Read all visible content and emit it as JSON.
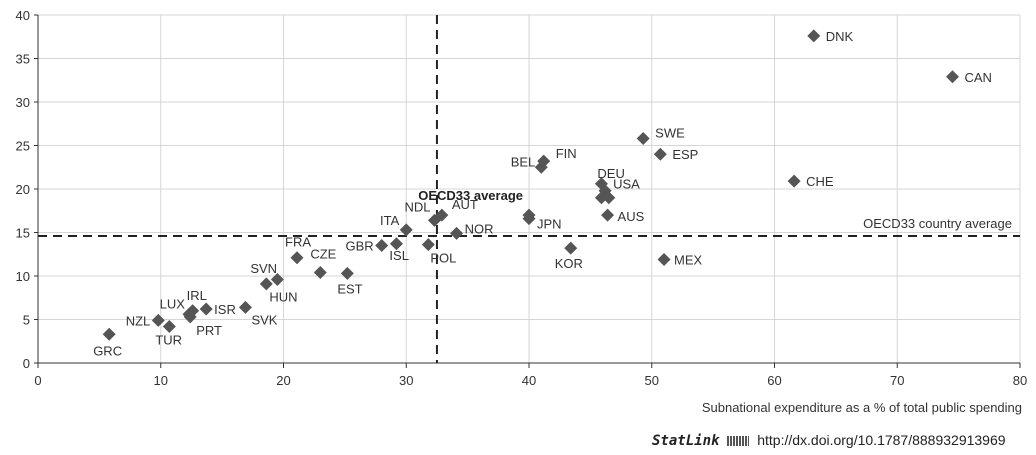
{
  "chart_data": {
    "type": "scatter",
    "xlabel": "Subnational expenditure as a % of total public spending",
    "ylabel": "",
    "xlim": [
      0,
      80
    ],
    "ylim": [
      0,
      40
    ],
    "x_ticks": [
      0,
      10,
      20,
      30,
      40,
      50,
      60,
      70,
      80
    ],
    "y_ticks": [
      0,
      5,
      10,
      15,
      20,
      25,
      30,
      35,
      40
    ],
    "grid": true,
    "marker": "diamond",
    "marker_color": "#555555",
    "reference_lines": {
      "horizontal": {
        "y": 14.6,
        "label": "OECD33 country average"
      },
      "vertical": {
        "x": 32.5
      }
    },
    "average_point": {
      "x": 40,
      "y": 17,
      "label": "OECD33 average"
    },
    "points": [
      {
        "label": "DNK",
        "x": 63.2,
        "y": 37.6
      },
      {
        "label": "CAN",
        "x": 74.5,
        "y": 32.9
      },
      {
        "label": "SWE",
        "x": 49.3,
        "y": 25.8
      },
      {
        "label": "ESP",
        "x": 50.7,
        "y": 24.0
      },
      {
        "label": "FIN",
        "x": 41.2,
        "y": 23.2
      },
      {
        "label": "BEL",
        "x": 41.0,
        "y": 22.5
      },
      {
        "label": "CHE",
        "x": 61.6,
        "y": 20.9
      },
      {
        "label": "DEU",
        "x": 45.9,
        "y": 20.6
      },
      {
        "label": "USA",
        "x": 46.2,
        "y": 19.8
      },
      {
        "label": "",
        "x": 45.9,
        "y": 19.0
      },
      {
        "label": "",
        "x": 46.5,
        "y": 19.0
      },
      {
        "label": "AUS",
        "x": 46.4,
        "y": 17.0
      },
      {
        "label": "JPN",
        "x": 40.0,
        "y": 16.6
      },
      {
        "label": "AUT",
        "x": 32.9,
        "y": 17.0
      },
      {
        "label": "NDL",
        "x": 32.3,
        "y": 16.4
      },
      {
        "label": "NOR",
        "x": 34.1,
        "y": 14.9
      },
      {
        "label": "ITA",
        "x": 30.0,
        "y": 15.3
      },
      {
        "label": "POL",
        "x": 31.8,
        "y": 13.6
      },
      {
        "label": "ISL",
        "x": 29.2,
        "y": 13.7
      },
      {
        "label": "GBR",
        "x": 28.0,
        "y": 13.5
      },
      {
        "label": "KOR",
        "x": 43.4,
        "y": 13.2
      },
      {
        "label": "MEX",
        "x": 51.0,
        "y": 11.9
      },
      {
        "label": "FRA",
        "x": 21.1,
        "y": 12.1
      },
      {
        "label": "CZE",
        "x": 23.0,
        "y": 10.4
      },
      {
        "label": "EST",
        "x": 25.2,
        "y": 10.3
      },
      {
        "label": "SVN",
        "x": 18.6,
        "y": 9.1
      },
      {
        "label": "HUN",
        "x": 19.5,
        "y": 9.6
      },
      {
        "label": "SVK",
        "x": 16.9,
        "y": 6.4
      },
      {
        "label": "ISR",
        "x": 13.7,
        "y": 6.2
      },
      {
        "label": "IRL",
        "x": 12.6,
        "y": 6.0
      },
      {
        "label": "PRT",
        "x": 12.4,
        "y": 5.3
      },
      {
        "label": "LUX",
        "x": 12.3,
        "y": 5.6
      },
      {
        "label": "NZL",
        "x": 9.8,
        "y": 4.9
      },
      {
        "label": "TUR",
        "x": 10.7,
        "y": 4.2
      },
      {
        "label": "GRC",
        "x": 5.8,
        "y": 3.3
      }
    ]
  },
  "statlink": {
    "brand": "StatLink",
    "logo_icon": "statlink-logo-icon",
    "url": "http://dx.doi.org/10.1787/888932913969"
  }
}
